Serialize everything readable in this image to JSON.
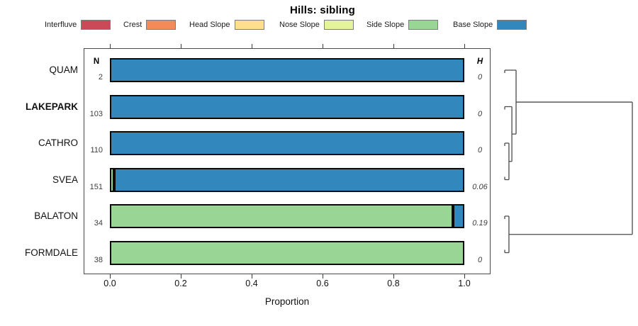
{
  "title": "Hills: sibling",
  "legend": {
    "items": [
      {
        "label": "Interfluve",
        "color": "#CB4A58"
      },
      {
        "label": "Crest",
        "color": "#F58A59"
      },
      {
        "label": "Head Slope",
        "color": "#FDDF8D"
      },
      {
        "label": "Nose Slope",
        "color": "#E4F49B"
      },
      {
        "label": "Side Slope",
        "color": "#99D594"
      },
      {
        "label": "Base Slope",
        "color": "#3288BD"
      }
    ]
  },
  "columns": {
    "n_header": "N",
    "h_header": "H"
  },
  "axis": {
    "tick_labels": [
      "0.0",
      "0.2",
      "0.4",
      "0.6",
      "0.8",
      "1.0"
    ],
    "xlabel": "Proportion"
  },
  "chart_data": {
    "type": "bar",
    "orientation": "horizontal",
    "stacked": true,
    "title": "Hills: sibling",
    "xlabel": "Proportion",
    "xlim": [
      0,
      1
    ],
    "xticks": [
      0.0,
      0.2,
      0.4,
      0.6,
      0.8,
      1.0
    ],
    "legend_entries": [
      "Interfluve",
      "Crest",
      "Head Slope",
      "Nose Slope",
      "Side Slope",
      "Base Slope"
    ],
    "legend_position": "top",
    "grid": false,
    "categories": [
      "QUAM",
      "LAKEPARK",
      "CATHRO",
      "SVEA",
      "BALATON",
      "FORMDALE"
    ],
    "rows": [
      {
        "label": "QUAM",
        "bold": false,
        "n": "2",
        "h": "0",
        "segments": [
          {
            "class": "Base Slope",
            "value": 1.0
          }
        ]
      },
      {
        "label": "LAKEPARK",
        "bold": true,
        "n": "103",
        "h": "0",
        "segments": [
          {
            "class": "Base Slope",
            "value": 1.0
          }
        ]
      },
      {
        "label": "CATHRO",
        "bold": false,
        "n": "110",
        "h": "0",
        "segments": [
          {
            "class": "Base Slope",
            "value": 1.0
          }
        ]
      },
      {
        "label": "SVEA",
        "bold": false,
        "n": "151",
        "h": "0.06",
        "segments": [
          {
            "class": "Side Slope",
            "value": 0.012
          },
          {
            "class": "Base Slope",
            "value": 0.988
          }
        ]
      },
      {
        "label": "BALATON",
        "bold": false,
        "n": "34",
        "h": "0.19",
        "segments": [
          {
            "class": "Side Slope",
            "value": 0.968
          },
          {
            "class": "Base Slope",
            "value": 0.032
          }
        ]
      },
      {
        "label": "FORMDALE",
        "bold": false,
        "n": "38",
        "h": "0",
        "segments": [
          {
            "class": "Side Slope",
            "value": 1.0
          }
        ]
      }
    ],
    "dendrogram": {
      "merges": [
        {
          "id": "m1",
          "children": [
            "CATHRO",
            "SVEA"
          ],
          "height": 0.033
        },
        {
          "id": "m2",
          "children": [
            "LAKEPARK",
            "m1"
          ],
          "height": 0.056
        },
        {
          "id": "m3",
          "children": [
            "QUAM",
            "m2"
          ],
          "height": 0.089
        },
        {
          "id": "m4",
          "children": [
            "BALATON",
            "FORMDALE"
          ],
          "height": 0.033
        },
        {
          "id": "m5",
          "children": [
            "m3",
            "m4"
          ],
          "height": 1.0
        }
      ]
    }
  }
}
